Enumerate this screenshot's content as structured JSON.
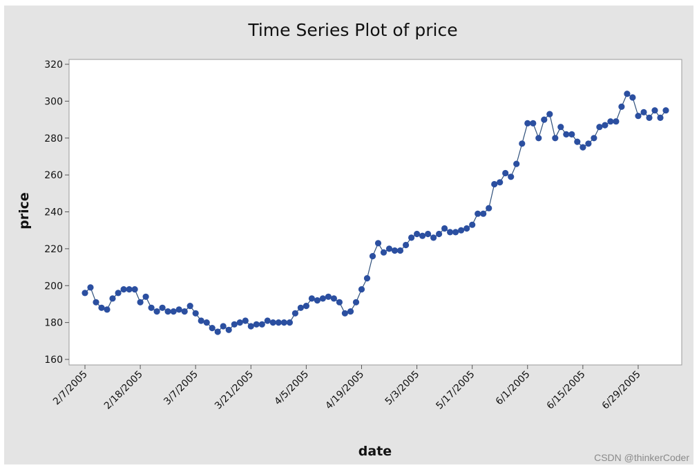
{
  "watermark": "CSDN @thinkerCoder",
  "chart_data": {
    "type": "line",
    "title": "Time Series Plot of price",
    "xlabel": "date",
    "ylabel": "price",
    "ylim": [
      160,
      320
    ],
    "yticks": [
      160,
      180,
      200,
      220,
      240,
      260,
      280,
      300,
      320
    ],
    "xticks": [
      {
        "index": 0,
        "label": "2/7/2005"
      },
      {
        "index": 10,
        "label": "2/18/2005"
      },
      {
        "index": 20,
        "label": "3/7/2005"
      },
      {
        "index": 30,
        "label": "3/21/2005"
      },
      {
        "index": 40,
        "label": "4/5/2005"
      },
      {
        "index": 50,
        "label": "4/19/2005"
      },
      {
        "index": 60,
        "label": "5/3/2005"
      },
      {
        "index": 70,
        "label": "5/17/2005"
      },
      {
        "index": 80,
        "label": "6/1/2005"
      },
      {
        "index": 90,
        "label": "6/15/2005"
      },
      {
        "index": 100,
        "label": "6/29/2005"
      }
    ],
    "grid": false,
    "marker": "circle",
    "colors": {
      "series": "#2b4fa0",
      "line": "#2e4f7a"
    },
    "series": [
      {
        "values": [
          196,
          199,
          191,
          188,
          187,
          193,
          196,
          198,
          198,
          198,
          191,
          194,
          188,
          186,
          188,
          186,
          186,
          187,
          186,
          189,
          185,
          181,
          180,
          177,
          175,
          178,
          176,
          179,
          180,
          181,
          178,
          179,
          179,
          181,
          180,
          180,
          180,
          180,
          185,
          188,
          189,
          193,
          192,
          193,
          194,
          193,
          191,
          185,
          186,
          191,
          198,
          204,
          216,
          223,
          218,
          220,
          219,
          219,
          222,
          226,
          228,
          227,
          228,
          226,
          228,
          231,
          229,
          229,
          230,
          231,
          233,
          239,
          239,
          242,
          255,
          256,
          261,
          259,
          266,
          277,
          288,
          288,
          280,
          290,
          293,
          280,
          286,
          282,
          282,
          278,
          275,
          277,
          280,
          286,
          287,
          289,
          289,
          297,
          304,
          302,
          292,
          294,
          291,
          295,
          291,
          295
        ]
      }
    ]
  }
}
